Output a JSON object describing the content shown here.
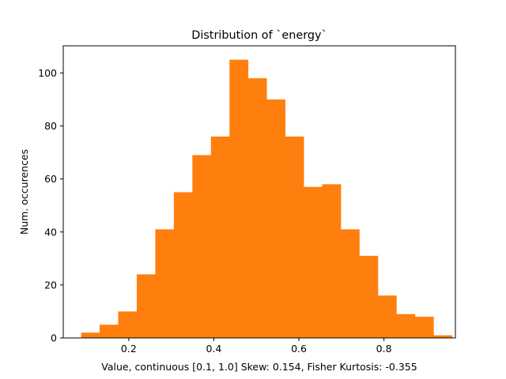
{
  "chart_data": {
    "type": "bar",
    "title": "Distribution of `energy`",
    "xlabel": "Value, continuous [0.1, 1.0]    Skew: 0.154, Fisher Kurtosis: -0.355",
    "ylabel": "Num. occurences",
    "xlim": [
      0.046,
      0.968
    ],
    "ylim": [
      0,
      110.25
    ],
    "xticks": [
      0.2,
      0.4,
      0.6,
      0.8
    ],
    "xtick_labels": [
      "0.2",
      "0.4",
      "0.6",
      "0.8"
    ],
    "yticks": [
      0,
      20,
      40,
      60,
      80,
      100
    ],
    "ytick_labels": [
      "0",
      "20",
      "40",
      "60",
      "80",
      "100"
    ],
    "bin_edges": [
      0.088,
      0.1316,
      0.1752,
      0.2188,
      0.2624,
      0.306,
      0.3496,
      0.3932,
      0.4368,
      0.4804,
      0.524,
      0.5676,
      0.6112,
      0.6548,
      0.6984,
      0.742,
      0.7856,
      0.8292,
      0.8728,
      0.9164,
      0.96
    ],
    "values": [
      2,
      5,
      10,
      24,
      41,
      55,
      69,
      76,
      105,
      98,
      90,
      76,
      57,
      58,
      41,
      31,
      16,
      9,
      8,
      1
    ],
    "bar_color": "#ff7f0e",
    "grid": false
  }
}
